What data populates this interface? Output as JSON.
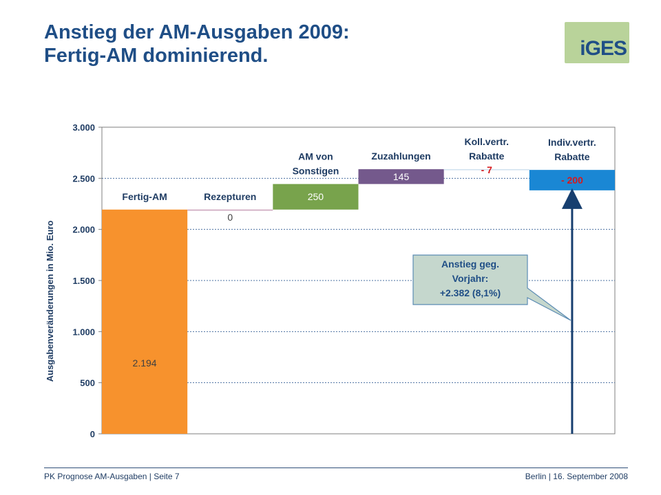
{
  "header": {
    "title_line1": "Anstieg der AM-Ausgaben 2009:",
    "title_line2": "Fertig-AM dominierend.",
    "logo_text": "iGES"
  },
  "chart_data": {
    "type": "bar",
    "subtype": "waterfall",
    "ylabel": "Ausgabenveränderungen in Mio. Euro",
    "ylim": [
      0,
      3000
    ],
    "yticks": [
      0,
      500,
      1000,
      1500,
      2000,
      2500,
      3000
    ],
    "ytick_labels": [
      "0",
      "500",
      "1.000",
      "1.500",
      "2.000",
      "2.500",
      "3.000"
    ],
    "grid": true,
    "categories": [
      "Fertig-AM",
      "Rezepturen",
      "AM von Sonstigen",
      "Zuzahlungen",
      "Koll.vertr. Rabatte",
      "Indiv.vertr. Rabatte"
    ],
    "category_lines": [
      [
        "Fertig-AM"
      ],
      [
        "Rezepturen"
      ],
      [
        "AM von",
        "Sonstigen"
      ],
      [
        "Zuzahlungen"
      ],
      [
        "Koll.vertr.",
        "Rabatte"
      ],
      [
        "Indiv.vertr.",
        "Rabatte"
      ]
    ],
    "values": [
      2194,
      0,
      250,
      145,
      -7,
      -200
    ],
    "value_labels": [
      "2.194",
      "0",
      "250",
      "145",
      "- 7",
      "- 200"
    ],
    "colors": [
      "#f7922d",
      "#c9a0b8",
      "#78a34c",
      "#74598c",
      "#cfe0ee",
      "#1a87d4"
    ],
    "value_label_colors": [
      "#404040",
      "#404040",
      "#ffffff",
      "#ffffff",
      "#d7191c",
      "#d7191c"
    ],
    "annotation": {
      "lines": [
        "Anstieg geg.",
        "Vorjahr:",
        "+2.382 (8,1%)"
      ],
      "total": 2382
    }
  },
  "footer": {
    "left": "PK Prognose  AM-Ausgaben  |  Seite 7",
    "right": "Berlin  |  16. September 2008"
  }
}
